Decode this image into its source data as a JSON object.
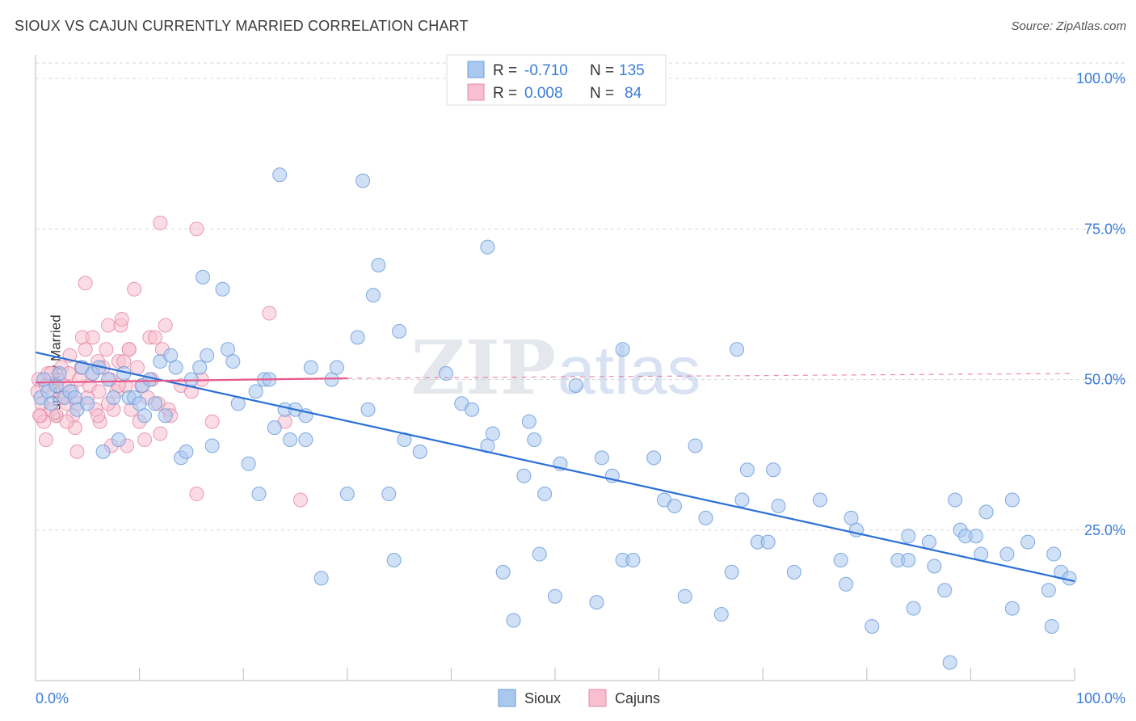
{
  "header": {
    "title": "SIOUX VS CAJUN CURRENTLY MARRIED CORRELATION CHART",
    "source": "Source: ZipAtlas.com"
  },
  "watermark": {
    "part1": "ZIP",
    "part2": "atlas"
  },
  "colors": {
    "sioux_fill": "#a9c8f0",
    "sioux_stroke": "#6b9bd8",
    "sioux_line": "#2a6fd6",
    "cajun_fill": "#f7bfd0",
    "cajun_stroke": "#e58aa7",
    "cajun_line": "#e8588a",
    "axis_text": "#3b7dd8",
    "grid": "#d9d9d9"
  },
  "legend": {
    "r_label": "R =",
    "n_label": "N =",
    "rows": [
      {
        "name": "Sioux",
        "r": "-0.710",
        "n": "135"
      },
      {
        "name": "Cajuns",
        "r": "0.008",
        "n": "84"
      }
    ]
  },
  "chart_data": {
    "type": "scatter",
    "title": "SIOUX VS CAJUN CURRENTLY MARRIED CORRELATION CHART",
    "xlabel": "",
    "ylabel": "Currently Married",
    "xlim": [
      0,
      100
    ],
    "ylim": [
      0,
      100
    ],
    "x_tick_labels": [
      "0.0%",
      "100.0%"
    ],
    "y_ticks": [
      {
        "value": 25,
        "label": "25.0%"
      },
      {
        "value": 50,
        "label": "50.0%"
      },
      {
        "value": 75,
        "label": "75.0%"
      },
      {
        "value": 100,
        "label": "100.0%"
      }
    ],
    "series": [
      {
        "name": "Sioux",
        "r": -0.71,
        "n": 135,
        "trend": {
          "x0": 0,
          "y0": 54.5,
          "x1": 100,
          "y1": 16.5
        },
        "points": [
          [
            0.5,
            47
          ],
          [
            0.8,
            50
          ],
          [
            1.2,
            48
          ],
          [
            1.5,
            46
          ],
          [
            2.0,
            49
          ],
          [
            2.3,
            51
          ],
          [
            2.8,
            47
          ],
          [
            3.3,
            48
          ],
          [
            3.8,
            47
          ],
          [
            4.0,
            45
          ],
          [
            4.5,
            52
          ],
          [
            5.0,
            46
          ],
          [
            5.5,
            51
          ],
          [
            6.1,
            52
          ],
          [
            6.5,
            38
          ],
          [
            7.0,
            50
          ],
          [
            7.5,
            47
          ],
          [
            8.0,
            40
          ],
          [
            8.5,
            51
          ],
          [
            9.0,
            47
          ],
          [
            9.5,
            47
          ],
          [
            10.0,
            46
          ],
          [
            10.3,
            49
          ],
          [
            10.5,
            44
          ],
          [
            11.0,
            50
          ],
          [
            11.5,
            46
          ],
          [
            12.0,
            53
          ],
          [
            12.5,
            44
          ],
          [
            13.0,
            54
          ],
          [
            13.5,
            52
          ],
          [
            14.0,
            37
          ],
          [
            14.5,
            38
          ],
          [
            15.0,
            50
          ],
          [
            15.8,
            52
          ],
          [
            16.1,
            67
          ],
          [
            16.5,
            54
          ],
          [
            17.0,
            39
          ],
          [
            18.0,
            65
          ],
          [
            18.5,
            55
          ],
          [
            19.0,
            53
          ],
          [
            19.5,
            46
          ],
          [
            20.5,
            36
          ],
          [
            21.5,
            31
          ],
          [
            21.2,
            48
          ],
          [
            22.0,
            50
          ],
          [
            22.5,
            50
          ],
          [
            23.0,
            42
          ],
          [
            23.5,
            84
          ],
          [
            24.0,
            45
          ],
          [
            24.5,
            40
          ],
          [
            25.0,
            45
          ],
          [
            26.0,
            44
          ],
          [
            26.5,
            52
          ],
          [
            27.5,
            17
          ],
          [
            28.5,
            50
          ],
          [
            29.0,
            52
          ],
          [
            30.0,
            31
          ],
          [
            31.0,
            57
          ],
          [
            31.5,
            83
          ],
          [
            32.0,
            45
          ],
          [
            32.5,
            64
          ],
          [
            33.0,
            69
          ],
          [
            34.0,
            31
          ],
          [
            34.5,
            20
          ],
          [
            35.0,
            58
          ],
          [
            35.5,
            40
          ],
          [
            37.0,
            38
          ],
          [
            39.5,
            51
          ],
          [
            41.0,
            46
          ],
          [
            42.0,
            45
          ],
          [
            43.5,
            72
          ],
          [
            43.5,
            39
          ],
          [
            44.0,
            41
          ],
          [
            45.0,
            18
          ],
          [
            46.0,
            10
          ],
          [
            47.0,
            34
          ],
          [
            47.5,
            43
          ],
          [
            48.0,
            40
          ],
          [
            48.5,
            21
          ],
          [
            49.0,
            31
          ],
          [
            50.0,
            14
          ],
          [
            50.5,
            36
          ],
          [
            52.0,
            49
          ],
          [
            54.0,
            13
          ],
          [
            54.5,
            37
          ],
          [
            55.5,
            34
          ],
          [
            56.5,
            55
          ],
          [
            56.5,
            20
          ],
          [
            57.5,
            20
          ],
          [
            59.5,
            37
          ],
          [
            60.5,
            30
          ],
          [
            61.5,
            29
          ],
          [
            62.5,
            14
          ],
          [
            63.5,
            39
          ],
          [
            64.5,
            27
          ],
          [
            66.0,
            11
          ],
          [
            67.0,
            18
          ],
          [
            67.5,
            55
          ],
          [
            68.0,
            30
          ],
          [
            68.5,
            35
          ],
          [
            69.5,
            23
          ],
          [
            70.5,
            23
          ],
          [
            71.0,
            35
          ],
          [
            71.5,
            29
          ],
          [
            73.0,
            18
          ],
          [
            75.5,
            30
          ],
          [
            77.5,
            20
          ],
          [
            78.0,
            16
          ],
          [
            78.5,
            27
          ],
          [
            79.0,
            25
          ],
          [
            80.5,
            9
          ],
          [
            83.0,
            20
          ],
          [
            84.0,
            20
          ],
          [
            84.0,
            24
          ],
          [
            84.5,
            12
          ],
          [
            86.0,
            23
          ],
          [
            86.5,
            19
          ],
          [
            87.5,
            15
          ],
          [
            88.0,
            3
          ],
          [
            88.5,
            30
          ],
          [
            89.0,
            25
          ],
          [
            89.5,
            24
          ],
          [
            90.5,
            24
          ],
          [
            91.0,
            21
          ],
          [
            91.5,
            28
          ],
          [
            93.5,
            21
          ],
          [
            94.0,
            30
          ],
          [
            94.0,
            12
          ],
          [
            95.5,
            23
          ],
          [
            97.5,
            15
          ],
          [
            97.8,
            9
          ],
          [
            98.0,
            21
          ],
          [
            98.7,
            18
          ],
          [
            99.5,
            17
          ],
          [
            26.0,
            40
          ]
        ]
      },
      {
        "name": "Cajuns",
        "r": 0.008,
        "n": 84,
        "trend": {
          "x0": 0,
          "y0": 49.5,
          "x1": 30,
          "y1": 50.2,
          "dash_to_x": 100,
          "dash_to_y": 51
        },
        "points": [
          [
            0.2,
            48
          ],
          [
            0.3,
            50
          ],
          [
            0.5,
            44
          ],
          [
            0.6,
            46
          ],
          [
            0.8,
            43
          ],
          [
            1.0,
            49
          ],
          [
            1.2,
            51
          ],
          [
            1.5,
            45
          ],
          [
            1.8,
            48
          ],
          [
            2.0,
            44
          ],
          [
            2.2,
            50
          ],
          [
            2.5,
            52
          ],
          [
            2.6,
            47
          ],
          [
            2.8,
            49
          ],
          [
            3.0,
            46
          ],
          [
            3.2,
            51
          ],
          [
            3.3,
            54
          ],
          [
            3.5,
            48
          ],
          [
            3.6,
            44
          ],
          [
            3.8,
            42
          ],
          [
            4.0,
            46
          ],
          [
            4.2,
            50
          ],
          [
            4.4,
            52
          ],
          [
            4.5,
            57
          ],
          [
            4.8,
            55
          ],
          [
            4.8,
            66
          ],
          [
            5.0,
            47
          ],
          [
            5.2,
            49
          ],
          [
            5.5,
            51
          ],
          [
            5.5,
            57
          ],
          [
            5.8,
            45
          ],
          [
            6.0,
            53
          ],
          [
            6.1,
            48
          ],
          [
            6.2,
            43
          ],
          [
            6.5,
            52
          ],
          [
            6.8,
            55
          ],
          [
            7.0,
            59
          ],
          [
            7.2,
            50
          ],
          [
            7.3,
            39
          ],
          [
            7.5,
            45
          ],
          [
            7.8,
            48
          ],
          [
            8.0,
            53
          ],
          [
            8.2,
            59
          ],
          [
            8.3,
            60
          ],
          [
            8.5,
            53
          ],
          [
            8.7,
            49
          ],
          [
            8.8,
            39
          ],
          [
            9.0,
            55
          ],
          [
            9.2,
            45
          ],
          [
            9.5,
            65
          ],
          [
            9.8,
            52
          ],
          [
            10.0,
            43
          ],
          [
            10.2,
            49
          ],
          [
            10.5,
            40
          ],
          [
            10.8,
            47
          ],
          [
            11.0,
            57
          ],
          [
            11.2,
            50
          ],
          [
            11.5,
            57
          ],
          [
            11.8,
            46
          ],
          [
            12.0,
            41
          ],
          [
            12.2,
            55
          ],
          [
            12.5,
            59
          ],
          [
            12.8,
            45
          ],
          [
            13.0,
            44
          ],
          [
            14.0,
            49
          ],
          [
            15.0,
            48
          ],
          [
            16.0,
            50
          ],
          [
            17.0,
            43
          ],
          [
            15.5,
            75
          ],
          [
            15.5,
            31
          ],
          [
            12.0,
            76
          ],
          [
            22.5,
            61
          ],
          [
            24.0,
            43
          ],
          [
            25.5,
            30
          ],
          [
            0.4,
            44
          ],
          [
            1.0,
            40
          ],
          [
            1.5,
            51
          ],
          [
            2.0,
            44
          ],
          [
            3.0,
            43
          ],
          [
            4.0,
            38
          ],
          [
            6.0,
            44
          ],
          [
            7.0,
            46
          ],
          [
            8.0,
            49
          ],
          [
            9.0,
            55
          ]
        ]
      }
    ]
  }
}
